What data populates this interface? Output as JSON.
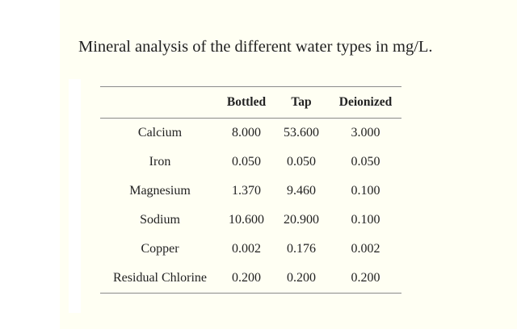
{
  "caption": "Mineral analysis of the different water types in mg/L.",
  "table": {
    "headers": [
      "",
      "Bottled",
      "Tap",
      "Deionized"
    ],
    "rows": [
      [
        "Calcium",
        "8.000",
        "53.600",
        "3.000"
      ],
      [
        "Iron",
        "0.050",
        "0.050",
        "0.050"
      ],
      [
        "Magnesium",
        "1.370",
        "9.460",
        "0.100"
      ],
      [
        "Sodium",
        "10.600",
        "20.900",
        "0.100"
      ],
      [
        "Copper",
        "0.002",
        "0.176",
        "0.002"
      ],
      [
        "Residual Chlorine",
        "0.200",
        "0.200",
        "0.200"
      ]
    ]
  }
}
